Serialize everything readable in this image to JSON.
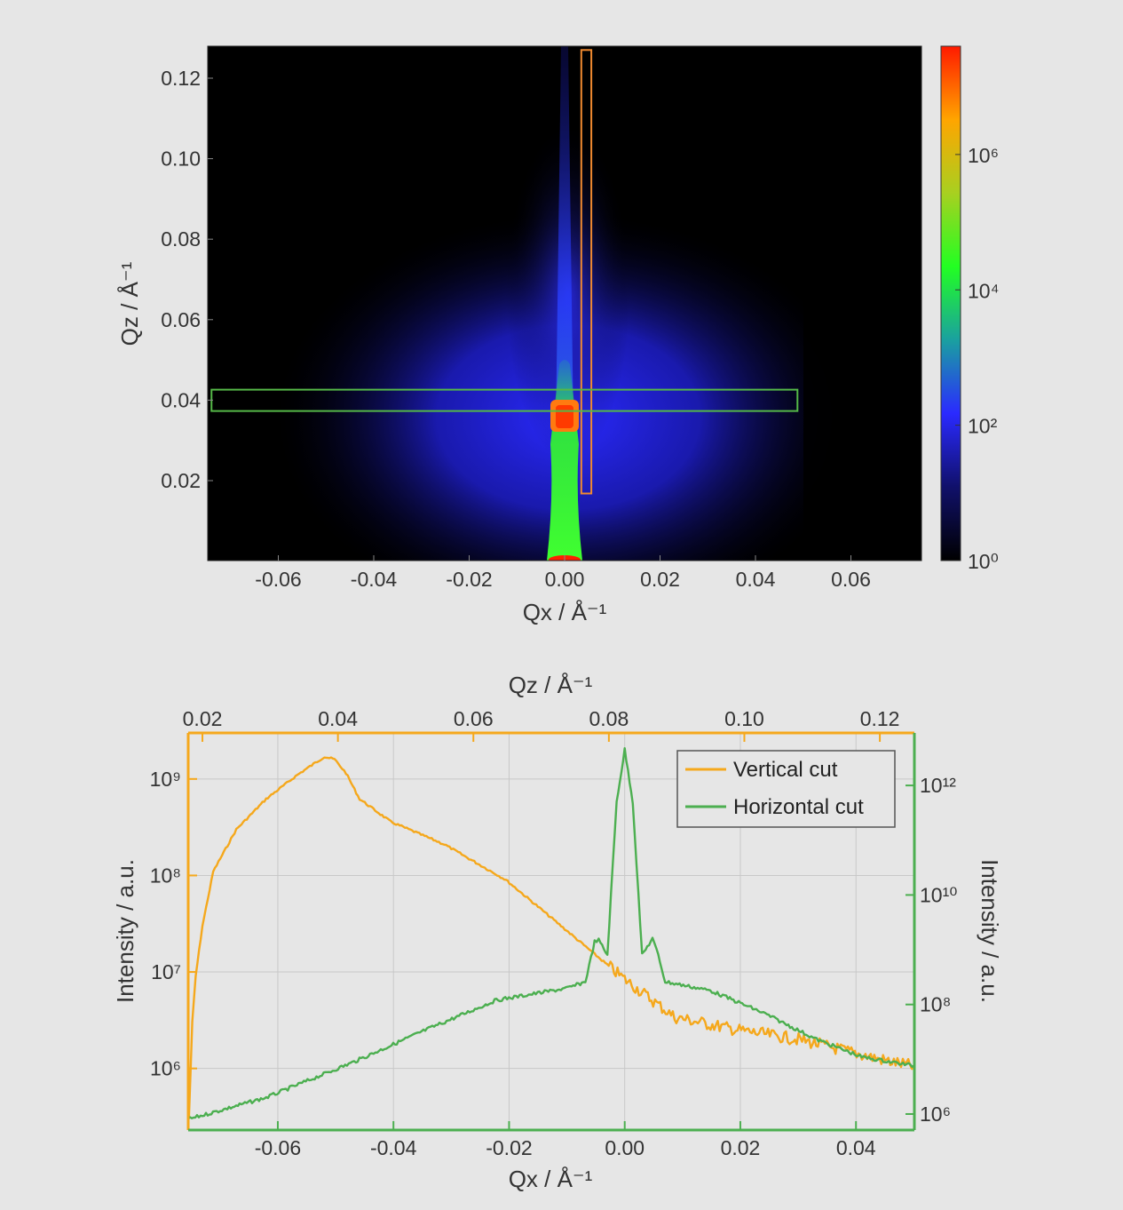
{
  "chart_data": [
    {
      "type": "heatmap",
      "xlabel": "Qx / Å⁻¹",
      "ylabel": "Qz / Å⁻¹",
      "xlim": [
        -0.075,
        0.075
      ],
      "ylim": [
        0,
        0.128
      ],
      "xticks": [
        -0.06,
        -0.04,
        -0.02,
        0.0,
        0.02,
        0.04,
        0.06
      ],
      "xtick_labels": [
        "-0.06",
        "-0.04",
        "-0.02",
        "0.00",
        "0.02",
        "0.04",
        "0.06"
      ],
      "yticks": [
        0.02,
        0.04,
        0.06,
        0.08,
        0.1,
        0.12
      ],
      "ytick_labels": [
        "0.02",
        "0.04",
        "0.06",
        "0.08",
        "0.10",
        "0.12"
      ],
      "colorbar": {
        "scale": "log",
        "range_log10": [
          0,
          7.6
        ],
        "ticks_log10": [
          0,
          2,
          4,
          6
        ],
        "tick_labels": [
          "10⁰",
          "10²",
          "10⁴",
          "10⁶"
        ],
        "colormap": [
          "#000000",
          "#10106a",
          "#2a2aff",
          "#1aa0a0",
          "#22ff22",
          "#a8d020",
          "#ffa500",
          "#ff1a00"
        ]
      },
      "regions": [
        {
          "name": "vertical cut region",
          "color": "#f08a30",
          "qx": [
            0.0035,
            0.0056
          ],
          "qz": [
            0.0168,
            0.127
          ]
        },
        {
          "name": "horizontal cut region",
          "color": "#55b848",
          "qx": [
            -0.074,
            0.0488
          ],
          "qz": [
            0.0373,
            0.0426
          ]
        }
      ]
    },
    {
      "type": "line",
      "xlabel": "Qx / Å⁻¹",
      "x2label": "Qz / Å⁻¹",
      "ylabel": "Intensity / a.u.",
      "y2label": "Intensity / a.u.",
      "xlim": [
        -0.0755,
        0.0501
      ],
      "x2lim": [
        0.0179,
        0.1251
      ],
      "ylim": [
        230000.0,
        3000000000.0
      ],
      "y2lim": [
        510000.0,
        9100000000000.0
      ],
      "yscale": "log",
      "y2scale": "log",
      "grid": true,
      "legend": "top-right",
      "xticks": [
        -0.06,
        -0.04,
        -0.02,
        0.0,
        0.02,
        0.04
      ],
      "xtick_labels": [
        "-0.06",
        "-0.04",
        "-0.02",
        "0.00",
        "0.02",
        "0.04"
      ],
      "x2ticks": [
        0.02,
        0.04,
        0.06,
        0.08,
        0.1,
        0.12
      ],
      "x2tick_labels": [
        "0.02",
        "0.04",
        "0.06",
        "0.08",
        "0.10",
        "0.12"
      ],
      "yticks": [
        1000000.0,
        10000000.0,
        100000000.0,
        1000000000.0
      ],
      "ytick_labels": [
        "10⁶",
        "10⁷",
        "10⁸",
        "10⁹"
      ],
      "y2ticks": [
        1000000.0,
        100000000.0,
        10000000000.0,
        1000000000000.0
      ],
      "y2tick_labels": [
        "10⁶",
        "10⁸",
        "10¹⁰",
        "10¹²"
      ],
      "series": [
        {
          "name": "Vertical cut",
          "color": "#f5a81c",
          "x_axis": "top (Qz)",
          "y_axis": "left",
          "points": [
            [
              0.018,
              300000.0
            ],
            [
              0.0185,
              3000000.0
            ],
            [
              0.019,
              9000000.0
            ],
            [
              0.02,
              30000000.0
            ],
            [
              0.0216,
              110000000.0
            ],
            [
              0.025,
              300000000.0
            ],
            [
              0.0294,
              620000000.0
            ],
            [
              0.034,
              1100000000.0
            ],
            [
              0.038,
              1700000000.0
            ],
            [
              0.0395,
              1600000000.0
            ],
            [
              0.0412,
              1150000000.0
            ],
            [
              0.0432,
              620000000.0
            ],
            [
              0.0478,
              360000000.0
            ],
            [
              0.0557,
              210000000.0
            ],
            [
              0.0648,
              90000000.0
            ],
            [
              0.074,
              26000000.0
            ],
            [
              0.0818,
              9000000.0
            ],
            [
              0.0897,
              3400000.0
            ],
            [
              0.099,
              2500000.0
            ],
            [
              0.108,
              2000000.0
            ],
            [
              0.121,
              1200000.0
            ],
            [
              0.125,
              1050000.0
            ]
          ]
        },
        {
          "name": "Horizontal cut",
          "color": "#4caf50",
          "x_axis": "bottom (Qx)",
          "y_axis": "right",
          "points": [
            [
              -0.0755,
              800000.0
            ],
            [
              -0.062,
              2000000.0
            ],
            [
              -0.0468,
              9000000.0
            ],
            [
              -0.0345,
              34000000.0
            ],
            [
              -0.0222,
              120000000.0
            ],
            [
              -0.0098,
              200000000.0
            ],
            [
              -0.0068,
              260000000.0
            ],
            [
              -0.0052,
              1400000000.0
            ],
            [
              -0.0045,
              1500000000.0
            ],
            [
              -0.003,
              800000000.0
            ],
            [
              -0.0014,
              500000000000.0
            ],
            [
              0,
              4500000000000.0
            ],
            [
              0.0014,
              500000000000.0
            ],
            [
              0.003,
              800000000.0
            ],
            [
              0.0048,
              1600000000.0
            ],
            [
              0.0058,
              800000000.0
            ],
            [
              0.007,
              260000000.0
            ],
            [
              0.0148,
              180000000.0
            ],
            [
              0.024,
              70000000.0
            ],
            [
              0.0332,
              23000000.0
            ],
            [
              0.041,
              11000000.0
            ],
            [
              0.05,
              7600000.0
            ]
          ]
        }
      ]
    }
  ]
}
